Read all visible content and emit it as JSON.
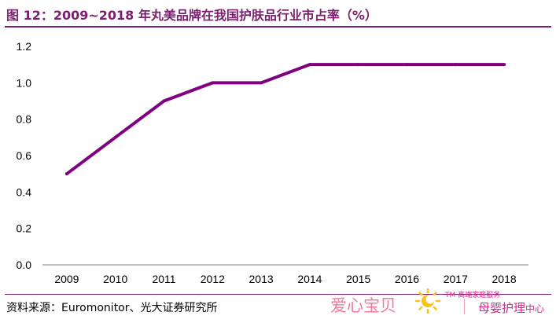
{
  "title": "图 12：2009~2018 年丸美品牌在我国护肤品行业市占率（%）",
  "source": "资料来源：Euromonitor、光大证券研究所",
  "watermark": {
    "left": "爱心宝贝",
    "tm": "TM 高端家庭服务",
    "right_main": "母婴护理",
    "right_small": "中心"
  },
  "colors": {
    "line": "#800080",
    "title": "#7b1f6e"
  },
  "chart_data": {
    "type": "line",
    "categories": [
      "2009",
      "2010",
      "2011",
      "2012",
      "2013",
      "2014",
      "2015",
      "2016",
      "2017",
      "2018"
    ],
    "series": [
      {
        "values": [
          0.5,
          0.7,
          0.9,
          1.0,
          1.0,
          1.1,
          1.1,
          1.1,
          1.1,
          1.1
        ]
      }
    ],
    "yticks": [
      "0.0",
      "0.2",
      "0.4",
      "0.6",
      "0.8",
      "1.0",
      "1.2"
    ],
    "ylim": [
      0,
      1.2
    ],
    "grid": false,
    "legend": "none"
  }
}
